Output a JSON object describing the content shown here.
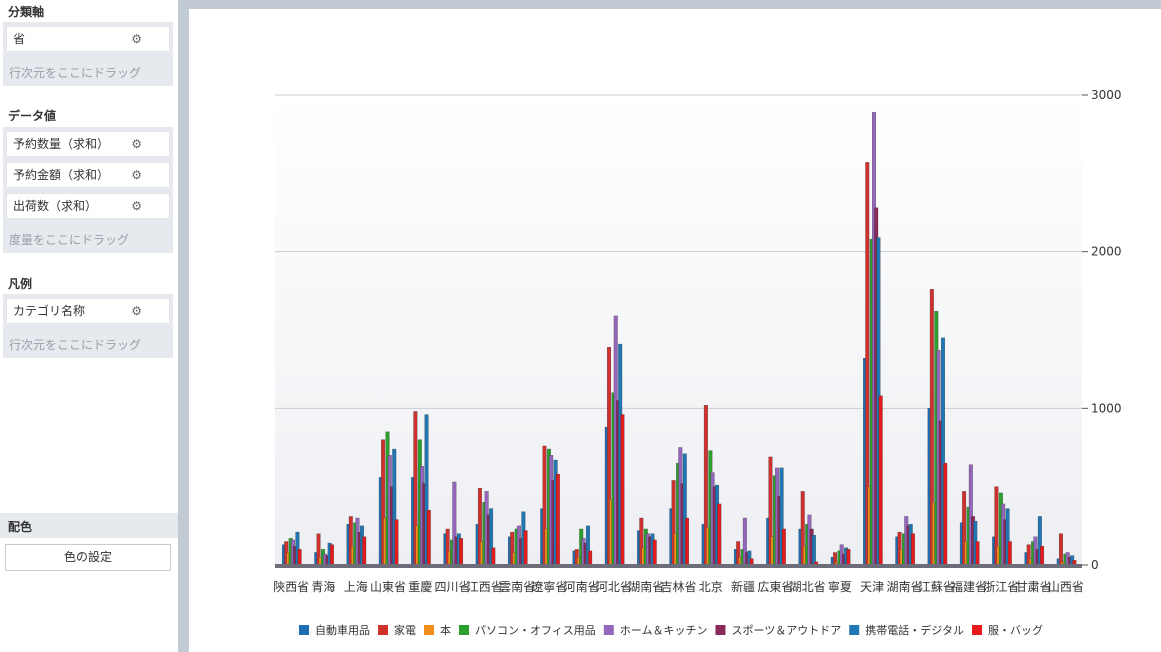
{
  "panel": {
    "axis_section": {
      "title": "分類軸",
      "fields": [
        {
          "label": "省"
        }
      ],
      "hint": "行次元をここにドラッグ"
    },
    "value_section": {
      "title": "データ値",
      "fields": [
        {
          "label": "予約数量（求和）"
        },
        {
          "label": "予約金額（求和）"
        },
        {
          "label": "出荷数（求和）"
        }
      ],
      "hint": "度量をここにドラッグ"
    },
    "legend_section": {
      "title": "凡例",
      "fields": [
        {
          "label": "カテゴリ名称"
        }
      ],
      "hint": "行次元をここにドラッグ"
    },
    "color_section": {
      "title": "配色",
      "button_label": "色の設定"
    },
    "gear_glyph": "⚙"
  },
  "chart_data": {
    "type": "bar",
    "categories": [
      "陝西省",
      "青海",
      "上海",
      "山東省",
      "重慶",
      "四川省",
      "江西省",
      "雲南省",
      "遼寧省",
      "河南省",
      "河北省",
      "湖南省",
      "吉林省",
      "北京",
      "新疆",
      "広東省",
      "湖北省",
      "寧夏",
      "天津",
      "湖南省",
      "江蘇省",
      "福建省",
      "浙江省",
      "甘粛省",
      "山西省"
    ],
    "series": [
      {
        "name": "自動車用品",
        "color": "#1f6fb5",
        "values": [
          130,
          80,
          260,
          560,
          560,
          200,
          260,
          180,
          360,
          90,
          880,
          220,
          360,
          260,
          100,
          300,
          230,
          50,
          1320,
          180,
          1000,
          270,
          180,
          80,
          40
        ]
      },
      {
        "name": "家電",
        "color": "#d0312d",
        "values": [
          150,
          200,
          310,
          800,
          980,
          230,
          490,
          210,
          760,
          100,
          1390,
          300,
          540,
          1020,
          150,
          690,
          470,
          80,
          2570,
          210,
          1760,
          470,
          500,
          130,
          200
        ]
      },
      {
        "name": "本",
        "color": "#f28e1c",
        "values": [
          80,
          50,
          120,
          300,
          250,
          90,
          150,
          80,
          230,
          50,
          420,
          110,
          200,
          240,
          50,
          180,
          120,
          20,
          500,
          100,
          400,
          150,
          120,
          40,
          20
        ]
      },
      {
        "name": "パソコン・オフィス用品",
        "color": "#2ca02c",
        "values": [
          170,
          100,
          270,
          850,
          800,
          160,
          400,
          230,
          740,
          230,
          1100,
          230,
          650,
          730,
          100,
          570,
          260,
          90,
          2080,
          200,
          1620,
          370,
          460,
          150,
          70
        ]
      },
      {
        "name": "ホーム＆キッチン",
        "color": "#9467bd",
        "values": [
          160,
          70,
          300,
          700,
          630,
          530,
          470,
          250,
          700,
          170,
          1590,
          200,
          750,
          590,
          300,
          620,
          320,
          130,
          2890,
          310,
          1370,
          640,
          390,
          180,
          80
        ]
      },
      {
        "name": "スポーツ＆アウトドア",
        "color": "#8a2a5a",
        "values": [
          120,
          60,
          210,
          500,
          520,
          180,
          320,
          170,
          540,
          140,
          1050,
          180,
          520,
          500,
          80,
          440,
          230,
          70,
          2280,
          250,
          920,
          310,
          290,
          100,
          50
        ]
      },
      {
        "name": "携帯電話・デジタル",
        "color": "#1f77b4",
        "values": [
          210,
          140,
          250,
          740,
          960,
          200,
          360,
          340,
          670,
          250,
          1410,
          200,
          710,
          510,
          90,
          620,
          190,
          110,
          2090,
          260,
          1450,
          280,
          360,
          310,
          60
        ]
      },
      {
        "name": "服・バッグ",
        "color": "#e41a1c",
        "values": [
          100,
          130,
          180,
          290,
          350,
          170,
          110,
          220,
          580,
          90,
          960,
          160,
          300,
          390,
          40,
          230,
          20,
          100,
          1080,
          200,
          650,
          150,
          150,
          120,
          30
        ]
      }
    ],
    "ylim": [
      0,
      3000
    ],
    "yticks": [
      0,
      1000,
      2000,
      3000
    ],
    "y_axis_side": "right",
    "grid": true,
    "legend_position": "bottom"
  }
}
